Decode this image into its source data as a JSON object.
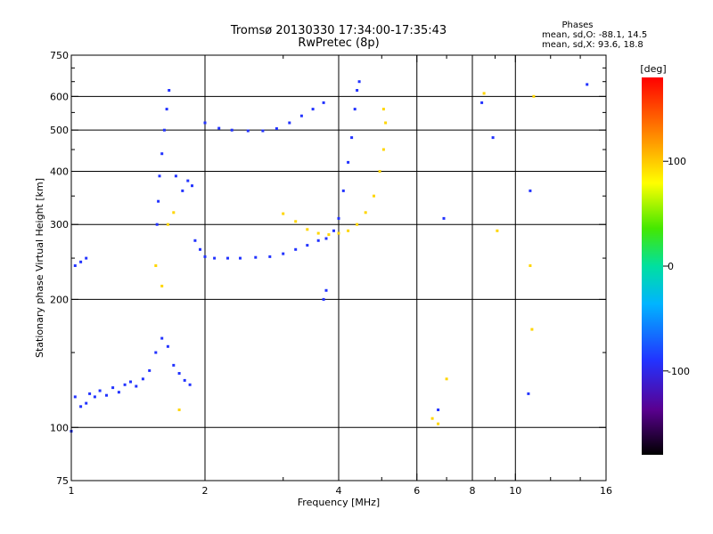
{
  "chart_data": {
    "type": "scatter",
    "title": "Tromsø 20130330 17:34:00-17:35:43",
    "subtitle": "RwPretec (8p)",
    "phase_box": {
      "heading": "Phases",
      "line1": "mean, sd,O: -88.1, 14.5",
      "line2": "mean, sd,X:  93.6, 18.8"
    },
    "xlabel": "Frequency [MHz]",
    "ylabel": "Stationary phase Virtual Height [km]",
    "x_scale": "log",
    "y_scale": "log",
    "xlim": [
      1,
      16
    ],
    "ylim": [
      75,
      750
    ],
    "x_ticks": [
      1,
      2,
      4,
      6,
      8,
      10,
      16
    ],
    "x_tick_labels": [
      "1",
      "2",
      "4",
      "6",
      "8",
      "10",
      "16"
    ],
    "y_ticks": [
      75,
      100,
      200,
      300,
      400,
      500,
      600,
      750
    ],
    "y_tick_labels": [
      "75",
      "100",
      "200",
      "300",
      "400",
      "500",
      "600",
      "750"
    ],
    "grid_x": [
      2,
      4,
      6,
      8,
      10
    ],
    "grid_y": [
      100,
      200,
      300,
      400,
      500,
      600
    ],
    "minor_x_ticks": [
      3,
      5,
      7,
      9,
      12,
      14
    ],
    "minor_y_ticks": [
      150,
      250,
      350,
      450,
      550,
      650,
      700
    ],
    "colorbar": {
      "label": "[deg]",
      "range": [
        -180,
        180
      ],
      "ticks": [
        100,
        0,
        -100
      ],
      "tick_labels": [
        "100",
        "0",
        "-100"
      ]
    },
    "series": [
      {
        "mode": "O",
        "phase": -90,
        "points": [
          [
            1.0,
            98
          ],
          [
            1.02,
            118
          ],
          [
            1.05,
            112
          ],
          [
            1.08,
            114
          ],
          [
            1.1,
            120
          ],
          [
            1.13,
            118
          ],
          [
            1.16,
            122
          ],
          [
            1.2,
            119
          ],
          [
            1.24,
            124
          ],
          [
            1.28,
            121
          ],
          [
            1.32,
            126
          ],
          [
            1.36,
            128
          ],
          [
            1.4,
            125
          ],
          [
            1.45,
            130
          ],
          [
            1.5,
            136
          ],
          [
            1.55,
            150
          ],
          [
            1.6,
            162
          ],
          [
            1.65,
            155
          ],
          [
            1.7,
            140
          ],
          [
            1.75,
            134
          ],
          [
            1.8,
            129
          ],
          [
            1.85,
            126
          ],
          [
            1.02,
            240
          ],
          [
            1.05,
            245
          ],
          [
            1.08,
            250
          ],
          [
            1.56,
            300
          ],
          [
            1.57,
            340
          ],
          [
            1.58,
            390
          ],
          [
            1.6,
            440
          ],
          [
            1.62,
            500
          ],
          [
            1.64,
            560
          ],
          [
            1.66,
            620
          ],
          [
            1.72,
            390
          ],
          [
            1.78,
            360
          ],
          [
            1.83,
            380
          ],
          [
            1.87,
            370
          ],
          [
            1.9,
            275
          ],
          [
            1.95,
            262
          ],
          [
            2.0,
            252
          ],
          [
            2.1,
            250
          ],
          [
            2.25,
            250
          ],
          [
            2.4,
            250
          ],
          [
            2.6,
            251
          ],
          [
            2.8,
            252
          ],
          [
            3.0,
            256
          ],
          [
            3.2,
            262
          ],
          [
            3.4,
            268
          ],
          [
            3.6,
            275
          ],
          [
            3.75,
            278
          ],
          [
            2.0,
            520
          ],
          [
            2.15,
            505
          ],
          [
            2.3,
            500
          ],
          [
            2.5,
            498
          ],
          [
            2.7,
            498
          ],
          [
            2.9,
            504
          ],
          [
            3.1,
            520
          ],
          [
            3.3,
            540
          ],
          [
            3.5,
            560
          ],
          [
            3.7,
            580
          ],
          [
            3.9,
            290
          ],
          [
            4.0,
            310
          ],
          [
            4.1,
            360
          ],
          [
            4.2,
            420
          ],
          [
            4.28,
            480
          ],
          [
            4.35,
            560
          ],
          [
            4.4,
            620
          ],
          [
            4.45,
            650
          ],
          [
            3.75,
            210
          ],
          [
            3.7,
            200
          ],
          [
            6.7,
            110
          ],
          [
            6.9,
            310
          ],
          [
            8.4,
            580
          ],
          [
            8.9,
            480
          ],
          [
            10.7,
            120
          ],
          [
            10.8,
            360
          ],
          [
            14.5,
            640
          ]
        ]
      },
      {
        "mode": "X",
        "phase": 95,
        "points": [
          [
            1.55,
            240
          ],
          [
            1.6,
            215
          ],
          [
            1.65,
            300
          ],
          [
            1.7,
            320
          ],
          [
            1.75,
            110
          ],
          [
            3.0,
            318
          ],
          [
            3.2,
            305
          ],
          [
            3.4,
            292
          ],
          [
            3.6,
            286
          ],
          [
            3.8,
            284
          ],
          [
            4.0,
            286
          ],
          [
            4.2,
            290
          ],
          [
            4.4,
            300
          ],
          [
            4.6,
            320
          ],
          [
            4.8,
            350
          ],
          [
            4.95,
            400
          ],
          [
            5.05,
            450
          ],
          [
            5.1,
            520
          ],
          [
            5.05,
            560
          ],
          [
            6.5,
            105
          ],
          [
            6.7,
            102
          ],
          [
            7.0,
            130
          ],
          [
            8.5,
            610
          ],
          [
            9.1,
            290
          ],
          [
            10.8,
            240
          ],
          [
            11.0,
            600
          ],
          [
            10.9,
            170
          ]
        ]
      }
    ]
  }
}
